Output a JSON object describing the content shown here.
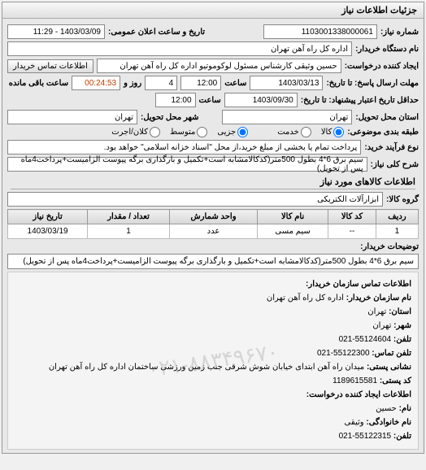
{
  "panel_title": "جزئیات اطلاعات نیاز",
  "fields": {
    "request_no_label": "شماره نیاز:",
    "request_no": "1103001338000061",
    "announce_label": "تاریخ و ساعت اعلان عمومی:",
    "announce_value": "1403/03/09 - 11:29",
    "buyer_org_label": "نام دستگاه خریدار:",
    "buyer_org": "اداره کل راه آهن تهران",
    "requester_label": "ایجاد کننده درخواست:",
    "requester": "حسین وثیقی کارشناس مسئول لوکوموتیو اداره کل راه آهن تهران",
    "contact_btn": "اطلاعات تماس خریدار",
    "deadline_to_label": "مهلت ارسال پاسخ: تا تاریخ:",
    "deadline_date": "1403/03/13",
    "deadline_hour_label": "ساعت",
    "deadline_hour": "12:00",
    "days_label": "روز و",
    "days_value": "4",
    "remain_label": "ساعت باقی مانده",
    "remain_value": "00:24:53",
    "min_date_label": "حداقل تاریخ اعتبار پیشنهاد: تا تاریخ:",
    "min_date": "1403/09/30",
    "min_hour": "12:00",
    "province_label": "استان محل تحویل:",
    "province": "تهران",
    "city_label": "شهر محل تحویل:",
    "city": "تهران",
    "category_label": "طبقه بندی موضوعی:",
    "cat_opts": {
      "goods": "کالا",
      "service": "خدمت"
    },
    "size_label": "جزیی ●  متوسط ○  کلان/اجرت ○",
    "size_opts": {
      "small": "جزیی",
      "medium": "متوسط",
      "large": "کلان/اجرت"
    },
    "process_label": "نوع فرآیند خرید:",
    "process_note": "پرداخت تمام یا بخشی از مبلغ خرید،از محل \"اسناد خزانه اسلامی\" خواهد بود.",
    "keyword_label": "شرح کلی نیاز:",
    "keyword": "سیم برق 6*4 بطول 500متر(کدکالامشابه است+تکمیل و بارگذاری برگه پیوست الزامیست+پرداخت4ماه پس از تحویل)"
  },
  "goods_section": "اطلاعات کالاهای مورد نیاز",
  "goods_group_label": "گروه کالا:",
  "goods_group": "ابزارآلات الکتریکی",
  "table": {
    "cols": [
      "ردیف",
      "کد کالا",
      "نام کالا",
      "واحد شمارش",
      "تعداد / مقدار",
      "تاریخ نیاز"
    ],
    "rows": [
      [
        "1",
        "--",
        "سیم مسی",
        "عدد",
        "1",
        "1403/03/19"
      ]
    ]
  },
  "buyer_notes_label": "توضیحات خریدار:",
  "buyer_notes": "سیم برق 6*4 بطول 500متر(کدکالامشابه است+تکمیل و بارگذاری برگه پیوست الزامیست+پرداخت4ماه پس از تحویل)",
  "contact_section": "اطلاعات تماس سازمان خریدار:",
  "contact": {
    "org_name_l": "نام سازمان خریدار:",
    "org_name": "اداره کل راه آهن تهران",
    "province_l": "استان:",
    "province": "تهران",
    "city_l": "شهر:",
    "city": "تهران",
    "phone_l": "تلفن:",
    "phone": "55124604-021",
    "fax_l": "تلفن تماس:",
    "fax": "55122300-021",
    "addr_l": "نشانی پستی:",
    "addr": "میدان راه آهن ابتدای خیابان شوش شرقی جنب زمین ورزشی ساختمان اداره کل راه آهن تهران",
    "post_l": "کد پستی:",
    "post": "1189615581",
    "creator_title": "اطلاعات ایجاد کننده درخواست:",
    "name_l": "نام:",
    "name": "حسین",
    "family_l": "نام خانوادگی:",
    "family": "وثیقی",
    "tel_l": "تلفن:",
    "tel": "55122315-021"
  },
  "watermark": "۰۲۱-۸۸۳۴۹۶۷۰"
}
